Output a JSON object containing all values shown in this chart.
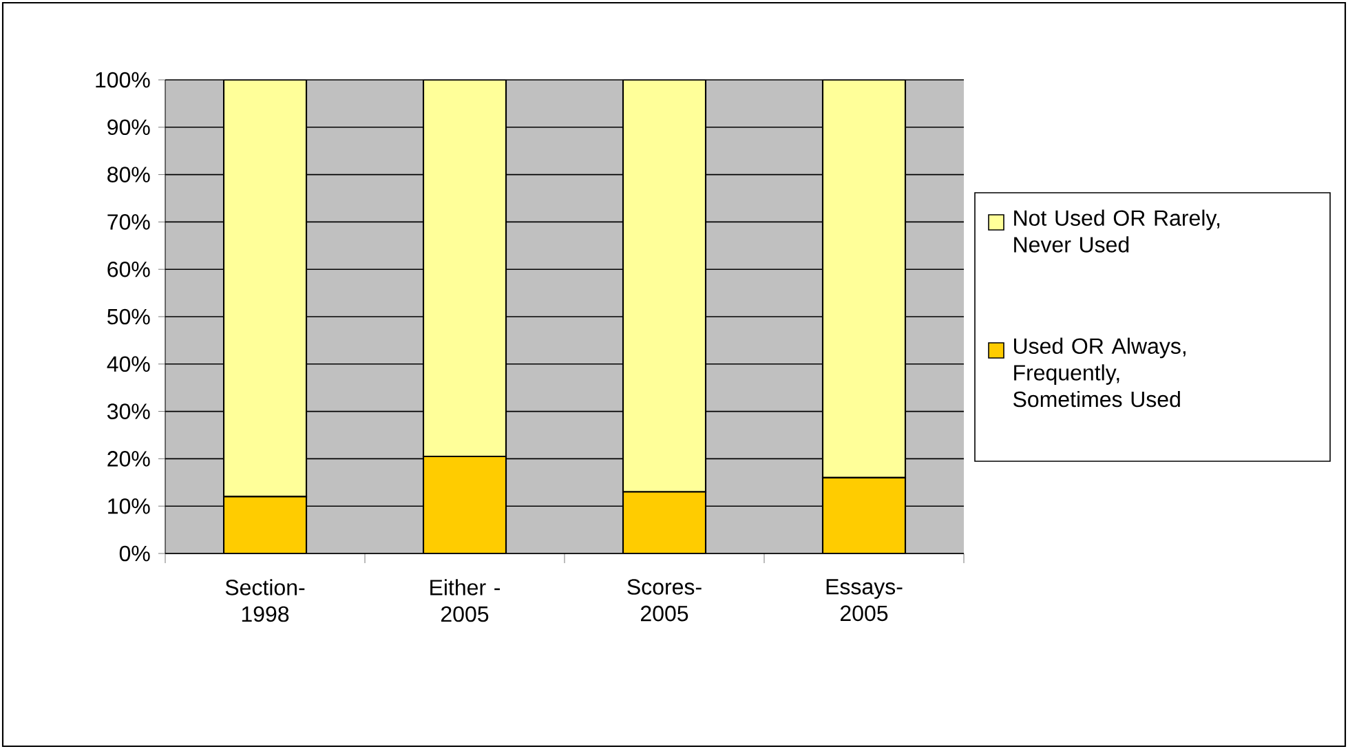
{
  "chart_data": {
    "type": "bar",
    "stacked": true,
    "legend": "right",
    "grid": "y",
    "categories": [
      "Section- 1998",
      "Either - 2005",
      "Scores- 2005",
      "Essays- 2005"
    ],
    "series": [
      {
        "name": "Used OR Always, Frequently, Sometimes Used",
        "color": "#ffcc00",
        "values": [
          12,
          20.5,
          13,
          16
        ]
      },
      {
        "name": "Not Used OR Rarely, Never Used",
        "color": "#ffff99",
        "values": [
          88,
          79.5,
          87,
          84
        ]
      }
    ],
    "ylim": [
      0,
      100
    ],
    "yticks": [
      {
        "value": 0,
        "label": "0%"
      },
      {
        "value": 10,
        "label": "10%"
      },
      {
        "value": 20,
        "label": "20%"
      },
      {
        "value": 30,
        "label": "30%"
      },
      {
        "value": 40,
        "label": "40%"
      },
      {
        "value": 50,
        "label": "50%"
      },
      {
        "value": 60,
        "label": "60%"
      },
      {
        "value": 70,
        "label": "70%"
      },
      {
        "value": 80,
        "label": "80%"
      },
      {
        "value": 90,
        "label": "90%"
      },
      {
        "value": 100,
        "label": "100%"
      }
    ]
  }
}
